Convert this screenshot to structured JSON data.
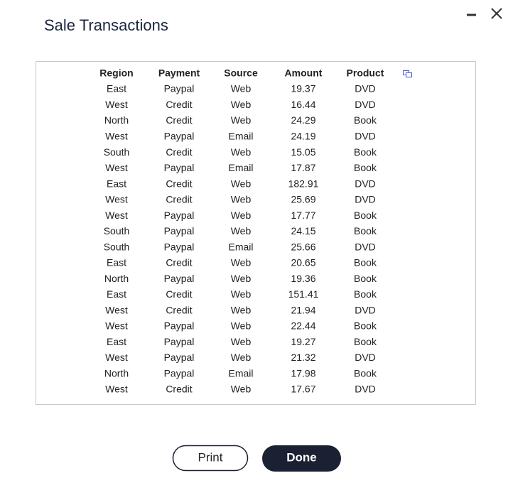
{
  "header": {
    "title": "Sale Transactions"
  },
  "table": {
    "columns": [
      "Region",
      "Payment",
      "Source",
      "Amount",
      "Product"
    ],
    "rows": [
      [
        "East",
        "Paypal",
        "Web",
        "19.37",
        "DVD"
      ],
      [
        "West",
        "Credit",
        "Web",
        "16.44",
        "DVD"
      ],
      [
        "North",
        "Credit",
        "Web",
        "24.29",
        "Book"
      ],
      [
        "West",
        "Paypal",
        "Email",
        "24.19",
        "DVD"
      ],
      [
        "South",
        "Credit",
        "Web",
        "15.05",
        "Book"
      ],
      [
        "West",
        "Paypal",
        "Email",
        "17.87",
        "Book"
      ],
      [
        "East",
        "Credit",
        "Web",
        "182.91",
        "DVD"
      ],
      [
        "West",
        "Credit",
        "Web",
        "25.69",
        "DVD"
      ],
      [
        "West",
        "Paypal",
        "Web",
        "17.77",
        "Book"
      ],
      [
        "South",
        "Paypal",
        "Web",
        "24.15",
        "Book"
      ],
      [
        "South",
        "Paypal",
        "Email",
        "25.66",
        "DVD"
      ],
      [
        "East",
        "Credit",
        "Web",
        "20.65",
        "Book"
      ],
      [
        "North",
        "Paypal",
        "Web",
        "19.36",
        "Book"
      ],
      [
        "East",
        "Credit",
        "Web",
        "151.41",
        "Book"
      ],
      [
        "West",
        "Credit",
        "Web",
        "21.94",
        "DVD"
      ],
      [
        "West",
        "Paypal",
        "Web",
        "22.44",
        "Book"
      ],
      [
        "East",
        "Paypal",
        "Web",
        "19.27",
        "Book"
      ],
      [
        "West",
        "Paypal",
        "Web",
        "21.32",
        "DVD"
      ],
      [
        "North",
        "Paypal",
        "Email",
        "17.98",
        "Book"
      ],
      [
        "West",
        "Credit",
        "Web",
        "17.67",
        "DVD"
      ]
    ]
  },
  "buttons": {
    "print": "Print",
    "done": "Done"
  }
}
